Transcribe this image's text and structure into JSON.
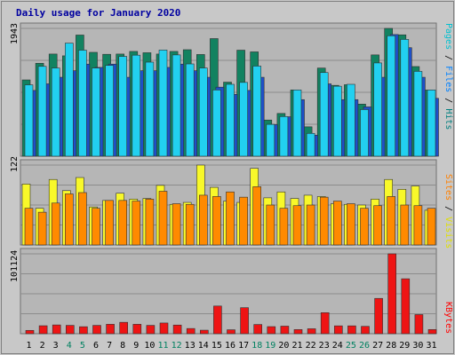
{
  "chart_data": {
    "type": "bar",
    "title": "Daily usage for January 2020",
    "categories": [
      "1",
      "2",
      "3",
      "4",
      "5",
      "6",
      "7",
      "8",
      "9",
      "10",
      "11",
      "12",
      "13",
      "14",
      "15",
      "16",
      "17",
      "18",
      "19",
      "20",
      "21",
      "22",
      "23",
      "24",
      "25",
      "26",
      "27",
      "28",
      "29",
      "30",
      "31"
    ],
    "weekend_days": [
      "4",
      "5",
      "11",
      "12",
      "18",
      "19",
      "25",
      "26"
    ],
    "panels": [
      {
        "id": "traffic",
        "ymax_label": "1943",
        "ymax": 1943,
        "legend": [
          {
            "text": "Pages",
            "color": "#00C0D0"
          },
          {
            "text": " / ",
            "color": "#000000"
          },
          {
            "text": "Files",
            "color": "#0080FF"
          },
          {
            "text": " / ",
            "color": "#000000"
          },
          {
            "text": "Hits",
            "color": "#008080"
          }
        ],
        "series": [
          {
            "name": "Hits",
            "color": "#128260",
            "values": [
              1160,
              1413,
              1553,
              1526,
              1842,
              1579,
              1549,
              1553,
              1593,
              1573,
              1553,
              1593,
              1619,
              1546,
              1788,
              1126,
              1612,
              1586,
              550,
              650,
              1007,
              447,
              1340,
              1077,
              1087,
              792,
              1540,
              1943,
              1845,
              1363,
              1006
            ]
          },
          {
            "name": "Files",
            "color": "#1E50C8",
            "values": [
              1000,
              1100,
              1200,
              1300,
              1400,
              1350,
              1400,
              1200,
              1300,
              1300,
              1350,
              1400,
              1300,
              1200,
              1050,
              940,
              1000,
              1200,
              480,
              600,
              860,
              320,
              1100,
              860,
              860,
              750,
              1200,
              1850,
              1650,
              1200,
              880
            ]
          },
          {
            "name": "Pages",
            "color": "#22D0F0",
            "values": [
              1085,
              1366,
              1341,
              1719,
              1612,
              1341,
              1380,
              1517,
              1536,
              1430,
              1614,
              1540,
              1403,
              1341,
              1007,
              1093,
              1122,
              1370,
              484,
              603,
              1007,
              347,
              1272,
              1064,
              1093,
              709,
              1418,
              1831,
              1776,
              1290,
              1007
            ]
          }
        ]
      },
      {
        "id": "visits",
        "ymax_label": "122",
        "ymax": 122,
        "legend": [
          {
            "text": "Sites",
            "color": "#FF8000"
          },
          {
            "text": " / ",
            "color": "#000000"
          },
          {
            "text": "Visits",
            "color": "#E0E000"
          }
        ],
        "series": [
          {
            "name": "Visits",
            "color": "#F8F82A",
            "values": [
              93,
              56,
              100,
              83,
              103,
              58,
              68,
              79,
              70,
              71,
              91,
              62,
              65,
              122,
              88,
              67,
              65,
              117,
              72,
              81,
              71,
              76,
              74,
              63,
              62,
              61,
              70,
              100,
              85,
              90,
              53
            ]
          },
          {
            "name": "Sites",
            "color": "#FF8A00",
            "values": [
              56,
              50,
              64,
              78,
              80,
              56,
              68,
              68,
              67,
              70,
              82,
              63,
              62,
              76,
              74,
              81,
              73,
              89,
              61,
              56,
              60,
              61,
              73,
              67,
              63,
              56,
              60,
              74,
              61,
              60,
              56
            ]
          }
        ]
      },
      {
        "id": "kbytes",
        "ymax_label": "101124",
        "ymax": 101124,
        "legend": [
          {
            "text": "KBytes",
            "color": "#FF0000"
          }
        ],
        "series": [
          {
            "name": "KBytes",
            "color": "#EE1414",
            "values": [
              4160,
              10080,
              11090,
              10540,
              8830,
              10540,
              11920,
              14420,
              11920,
              10540,
              13560,
              10950,
              6560,
              4440,
              35030,
              4980,
              32940,
              11640,
              8950,
              9560,
              5240,
              6260,
              26620,
              9950,
              9950,
              9300,
              44680,
              101124,
              69540,
              24180,
              5260
            ]
          }
        ]
      }
    ]
  }
}
